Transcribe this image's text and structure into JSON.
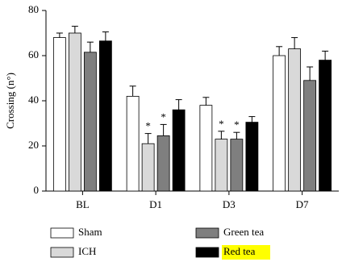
{
  "chart_data": {
    "type": "bar",
    "y_label": "Crossing (n°)",
    "categories": [
      "BL",
      "D1",
      "D3",
      "D7"
    ],
    "ylim": [
      0,
      80
    ],
    "yticks": [
      0,
      20,
      40,
      60,
      80
    ],
    "grid": false,
    "series": [
      {
        "name": "Sham",
        "color": "#ffffff",
        "values": [
          68,
          42,
          38,
          60
        ],
        "errors": [
          2,
          4.5,
          3.5,
          4
        ],
        "markers": [
          null,
          null,
          null,
          null
        ]
      },
      {
        "name": "ICH",
        "color": "#d9d9d9",
        "values": [
          70,
          21,
          23,
          63
        ],
        "errors": [
          3,
          4.5,
          3.5,
          5
        ],
        "markers": [
          null,
          "*",
          "*",
          null
        ]
      },
      {
        "name": "Green tea",
        "color": "#7f7f7f",
        "values": [
          61.5,
          24.5,
          23,
          49
        ],
        "errors": [
          4.5,
          5,
          3,
          6
        ],
        "markers": [
          null,
          "*",
          "*",
          null
        ]
      },
      {
        "name": "Red tea",
        "color": "#000000",
        "values": [
          66.5,
          36,
          30.5,
          58
        ],
        "errors": [
          4,
          4.5,
          2.5,
          4
        ],
        "markers": [
          null,
          null,
          null,
          null
        ],
        "legend_highlight": "#ffff00"
      }
    ]
  }
}
